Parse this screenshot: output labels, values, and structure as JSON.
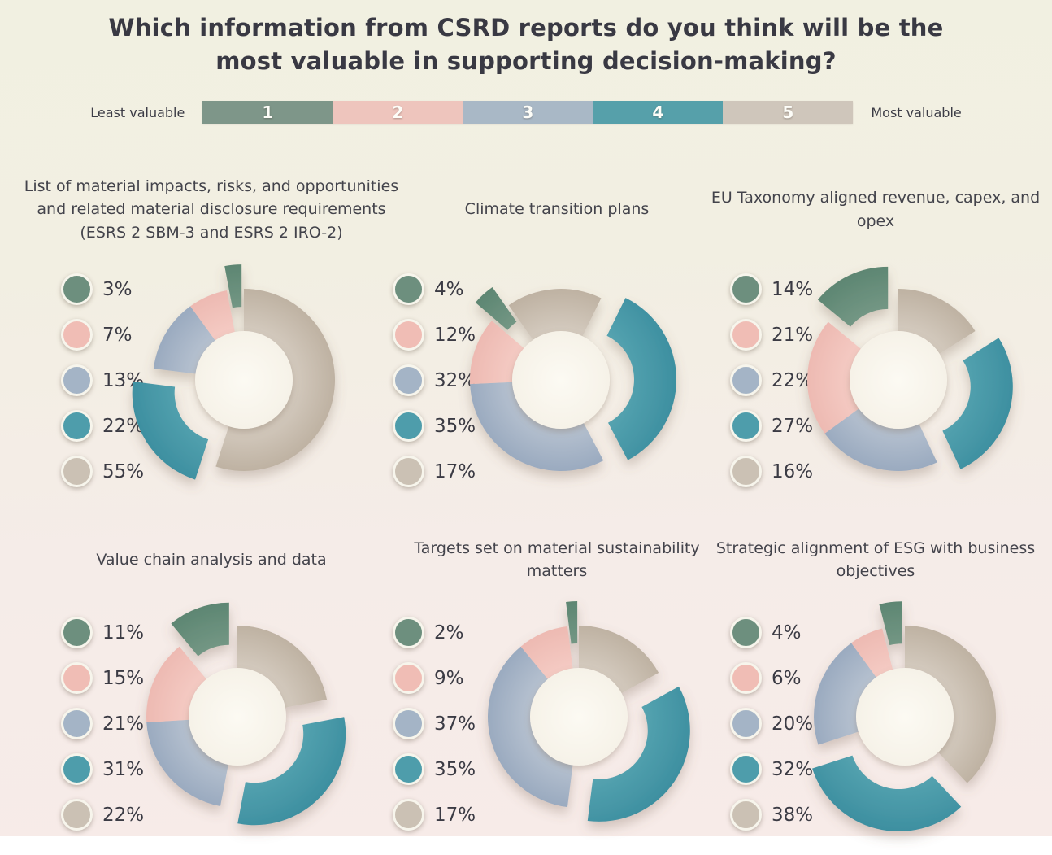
{
  "page": {
    "title": "Which information from CSRD reports do you think will be the most valuable in supporting decision-making?",
    "scale": {
      "left_label": "Least valuable",
      "right_label": "Most valuable",
      "levels": [
        "1",
        "2",
        "3",
        "4",
        "5"
      ]
    }
  },
  "palette": {
    "levels": [
      {
        "name": "1",
        "swatch": "#6d8f7e",
        "bar": "#7e9689",
        "grad_light": "#84a392",
        "grad_dark": "#5d8672"
      },
      {
        "name": "2",
        "swatch": "#f0bdb5",
        "bar": "#eec5bd",
        "grad_light": "#f6cec7",
        "grad_dark": "#e9b0a8"
      },
      {
        "name": "3",
        "swatch": "#a4b4c6",
        "bar": "#a9b8c6",
        "grad_light": "#bcc6d3",
        "grad_dark": "#8a9db6"
      },
      {
        "name": "4",
        "swatch": "#4e9dab",
        "bar": "#56a0aa",
        "grad_light": "#60acb7",
        "grad_dark": "#3d8fa0"
      },
      {
        "name": "5",
        "swatch": "#cbc1b4",
        "bar": "#cfc6bb",
        "grad_light": "#d8cfc4",
        "grad_dark": "#b2a492"
      }
    ],
    "hole": "#f9f6ee",
    "text": "#3a3a44"
  },
  "chart_data": [
    {
      "type": "donut",
      "title": "List of material impacts, risks, and opportunities and related material disclosure requirements (ESRS 2 SBM-3 and ESRS 2 IRO-2)",
      "categories": [
        "1",
        "2",
        "3",
        "4",
        "5"
      ],
      "values": [
        3,
        7,
        13,
        22,
        55
      ],
      "labels": [
        "3%",
        "7%",
        "13%",
        "22%",
        "55%"
      ],
      "start_angle": 0,
      "exploded": [
        1,
        4
      ],
      "legend_position": "left"
    },
    {
      "type": "donut",
      "title": "Climate transition plans",
      "categories": [
        "1",
        "2",
        "3",
        "4",
        "5"
      ],
      "values": [
        4,
        12,
        32,
        35,
        17
      ],
      "labels": [
        "4%",
        "12%",
        "32%",
        "35%",
        "17%"
      ],
      "start_angle": -35,
      "exploded": [
        1,
        4
      ],
      "legend_position": "left"
    },
    {
      "type": "donut",
      "title": "EU Taxonomy aligned revenue, capex, and opex",
      "categories": [
        "1",
        "2",
        "3",
        "4",
        "5"
      ],
      "values": [
        14,
        21,
        22,
        27,
        16
      ],
      "labels": [
        "14%",
        "21%",
        "22%",
        "27%",
        "16%"
      ],
      "start_angle": 0,
      "exploded": [
        1,
        4
      ],
      "legend_position": "left"
    },
    {
      "type": "donut",
      "title": "Value chain analysis and data",
      "categories": [
        "1",
        "2",
        "3",
        "4",
        "5"
      ],
      "values": [
        11,
        15,
        21,
        31,
        22
      ],
      "labels": [
        "11%",
        "15%",
        "21%",
        "31%",
        "22%"
      ],
      "start_angle": 0,
      "exploded": [
        1,
        4
      ],
      "legend_position": "left"
    },
    {
      "type": "donut",
      "title": "Targets set on material sustainability matters",
      "categories": [
        "1",
        "2",
        "3",
        "4",
        "5"
      ],
      "values": [
        2,
        9,
        37,
        35,
        17
      ],
      "labels": [
        "2%",
        "9%",
        "37%",
        "35%",
        "17%"
      ],
      "start_angle": 0,
      "exploded": [
        1,
        4
      ],
      "legend_position": "left"
    },
    {
      "type": "donut",
      "title": "Strategic alignment of ESG with business objectives",
      "categories": [
        "1",
        "2",
        "3",
        "4",
        "5"
      ],
      "values": [
        4,
        6,
        20,
        32,
        38
      ],
      "labels": [
        "4%",
        "6%",
        "20%",
        "32%",
        "38%"
      ],
      "start_angle": 0,
      "exploded": [
        1,
        4
      ],
      "legend_position": "left"
    }
  ]
}
